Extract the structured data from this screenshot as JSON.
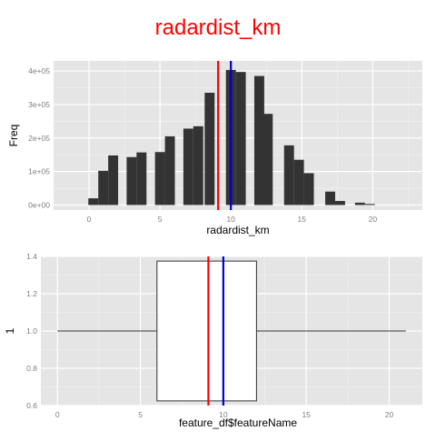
{
  "title": "radardist_km",
  "colors": {
    "title": "#ff0000",
    "panel_bg": "#e5e5e5",
    "grid_major": "#ffffff",
    "grid_minor": "#f2f2f2",
    "bar_fill": "#333333",
    "mean_line": "#ff0000",
    "median_line": "#0000cc",
    "tick_text": "#7f7f7f",
    "axis_title": "#000000"
  },
  "chart_data": [
    {
      "type": "bar",
      "xlabel": "radardist_km",
      "ylabel": "Freq",
      "xlim": [
        -2.5,
        23.5
      ],
      "ylim": [
        -15000,
        430000
      ],
      "x_ticks": [
        0,
        5,
        10,
        15,
        20
      ],
      "x_tick_labels": [
        "0",
        "5",
        "10",
        "15",
        "20"
      ],
      "y_ticks": [
        0,
        100000,
        200000,
        300000,
        400000
      ],
      "y_tick_labels": [
        "0e+00",
        "1e+05",
        "2e+05",
        "3e+05",
        "4e+05"
      ],
      "bin_width": 0.7,
      "bins": [
        {
          "x": 0.3,
          "count": 20000
        },
        {
          "x": 1.0,
          "count": 102000
        },
        {
          "x": 1.7,
          "count": 148000
        },
        {
          "x": 3.0,
          "count": 143000
        },
        {
          "x": 3.7,
          "count": 157000
        },
        {
          "x": 5.0,
          "count": 158000
        },
        {
          "x": 5.7,
          "count": 205000
        },
        {
          "x": 7.0,
          "count": 228000
        },
        {
          "x": 7.7,
          "count": 235000
        },
        {
          "x": 8.5,
          "count": 335000
        },
        {
          "x": 10.0,
          "count": 403000
        },
        {
          "x": 10.7,
          "count": 397000
        },
        {
          "x": 12.0,
          "count": 385000
        },
        {
          "x": 12.6,
          "count": 272000
        },
        {
          "x": 14.1,
          "count": 178000
        },
        {
          "x": 14.8,
          "count": 135000
        },
        {
          "x": 15.5,
          "count": 95000
        },
        {
          "x": 17.0,
          "count": 40000
        },
        {
          "x": 17.7,
          "count": 12000
        },
        {
          "x": 19.1,
          "count": 7000
        },
        {
          "x": 19.8,
          "count": 3000
        }
      ],
      "mean_x": 9.1,
      "median_x": 10.0,
      "grid": true
    },
    {
      "type": "boxplot",
      "xlabel": "feature_df$featureName",
      "ylabel": "1",
      "xlim": [
        -1.0,
        22.0
      ],
      "ylim": [
        0.6,
        1.4
      ],
      "x_ticks": [
        0,
        5,
        10,
        15,
        20
      ],
      "x_tick_labels": [
        "0",
        "5",
        "10",
        "15",
        "20"
      ],
      "y_ticks": [
        0.6,
        0.8,
        1.0,
        1.2,
        1.4
      ],
      "y_tick_labels": [
        "0.6",
        "0.8",
        "1.0",
        "1.2",
        "1.4"
      ],
      "box": {
        "min": 0,
        "q1": 6.0,
        "median": 10.0,
        "q3": 12.0,
        "max": 21.0,
        "y_low": 0.625,
        "y_high": 1.375,
        "y_center": 1.0
      },
      "mean_x": 9.1,
      "median_x": 10.0,
      "grid": true
    }
  ]
}
